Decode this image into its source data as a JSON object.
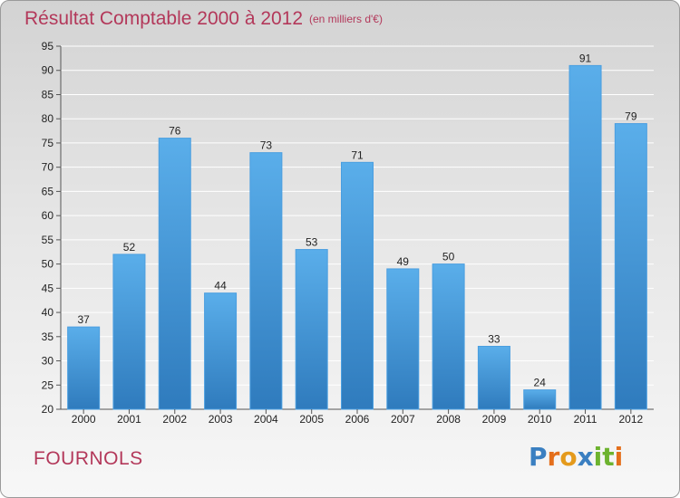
{
  "header": {
    "title": "Résultat Comptable 2000 à 2012",
    "subtitle": "(en milliers d'€)"
  },
  "footer": {
    "commune": "FOURNOLS",
    "logo_letters": [
      {
        "char": "P",
        "color": "#3a7fc1"
      },
      {
        "char": "r",
        "color": "#e46f1c"
      },
      {
        "char": "o",
        "color": "#e49a1c"
      },
      {
        "char": "x",
        "color": "#3a7fc1"
      },
      {
        "char": "i",
        "color": "#6db32f"
      },
      {
        "char": "t",
        "color": "#6db32f"
      },
      {
        "char": "i",
        "color": "#e46f1c"
      }
    ]
  },
  "colors": {
    "title": "#b3385a",
    "bar_top": "#5aaeea",
    "bar_bottom": "#2f7bbd",
    "grid": "#ffffff",
    "axis_text": "#222222"
  },
  "chart_data": {
    "type": "bar",
    "title": "Résultat Comptable 2000 à 2012",
    "subtitle": "(en milliers d'€)",
    "categories": [
      "2000",
      "2001",
      "2002",
      "2003",
      "2004",
      "2005",
      "2006",
      "2007",
      "2008",
      "2009",
      "2010",
      "2011",
      "2012"
    ],
    "values": [
      37,
      52,
      76,
      44,
      73,
      53,
      71,
      49,
      50,
      33,
      24,
      91,
      79
    ],
    "ylim": [
      20,
      95
    ],
    "yticks": [
      20,
      25,
      30,
      35,
      40,
      45,
      50,
      55,
      60,
      65,
      70,
      75,
      80,
      85,
      90,
      95
    ],
    "grid": true,
    "data_labels": true,
    "legend": "none"
  }
}
